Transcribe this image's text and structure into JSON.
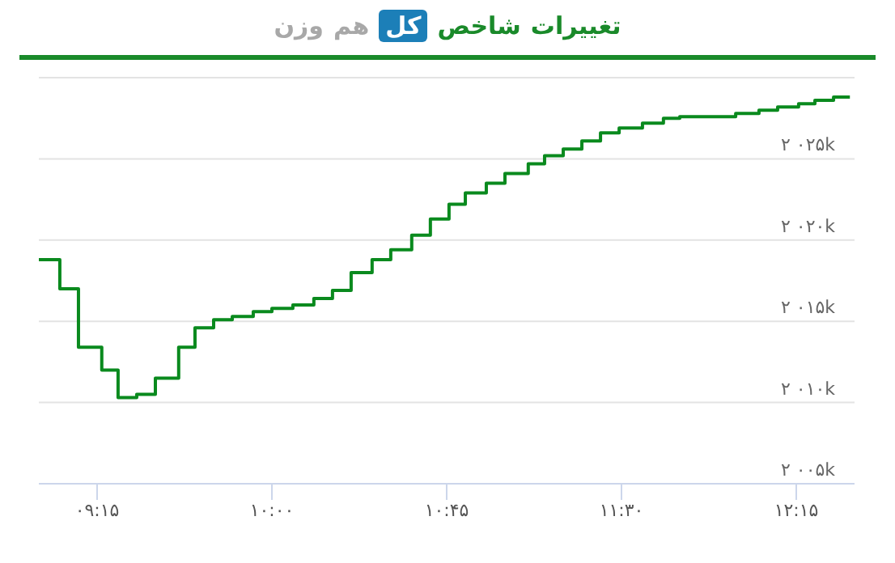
{
  "chart_data": {
    "type": "step",
    "title": "تغییرات شاخص کل هم وزن",
    "x": [
      9.0,
      9.09,
      9.17,
      9.27,
      9.34,
      9.42,
      9.5,
      9.6,
      9.67,
      9.75,
      9.83,
      9.92,
      10.0,
      10.09,
      10.18,
      10.26,
      10.34,
      10.43,
      10.51,
      10.6,
      10.68,
      10.76,
      10.83,
      10.92,
      11.0,
      11.1,
      11.17,
      11.25,
      11.33,
      11.41,
      11.49,
      11.59,
      11.68,
      11.75,
      11.99,
      12.09,
      12.17,
      12.26,
      12.33,
      12.41,
      12.48
    ],
    "series": [
      {
        "color": "#0a8a1e",
        "values": [
          2018800,
          2017000,
          2013400,
          2012000,
          2010300,
          2010500,
          2011500,
          2013400,
          2014600,
          2015100,
          2015300,
          2015600,
          2015800,
          2016000,
          2016400,
          2016900,
          2018000,
          2018800,
          2019400,
          2020300,
          2021300,
          2022200,
          2022900,
          2023500,
          2024100,
          2024700,
          2025200,
          2025600,
          2026100,
          2026600,
          2026900,
          2027200,
          2027500,
          2027600,
          2027800,
          2028000,
          2028200,
          2028400,
          2028600,
          2028800,
          2028800
        ]
      }
    ],
    "xlim": [
      9,
      12.5
    ],
    "xticks": [
      {
        "value": 9.25,
        "label": "۰۹:۱۵"
      },
      {
        "value": 10,
        "label": "۱۰:۰۰"
      },
      {
        "value": 10.75,
        "label": "۱۰:۴۵"
      },
      {
        "value": 11.5,
        "label": "۱۱:۳۰"
      },
      {
        "value": 12.25,
        "label": "۱۲:۱۵"
      }
    ],
    "ylim": [
      2005000,
      2030000
    ],
    "yticks": [
      {
        "value": 2005000,
        "label": "۲ ۰۰۵k"
      },
      {
        "value": 2010000,
        "label": "۲ ۰۱۰k"
      },
      {
        "value": 2015000,
        "label": "۲ ۰۱۵k"
      },
      {
        "value": 2020000,
        "label": "۲ ۰۲۰k"
      },
      {
        "value": 2025000,
        "label": "۲ ۰۲۵k"
      },
      {
        "value": 2030000,
        "label": null
      }
    ],
    "grid": "y",
    "legend": false,
    "marker": "none",
    "line_style": "solid"
  }
}
